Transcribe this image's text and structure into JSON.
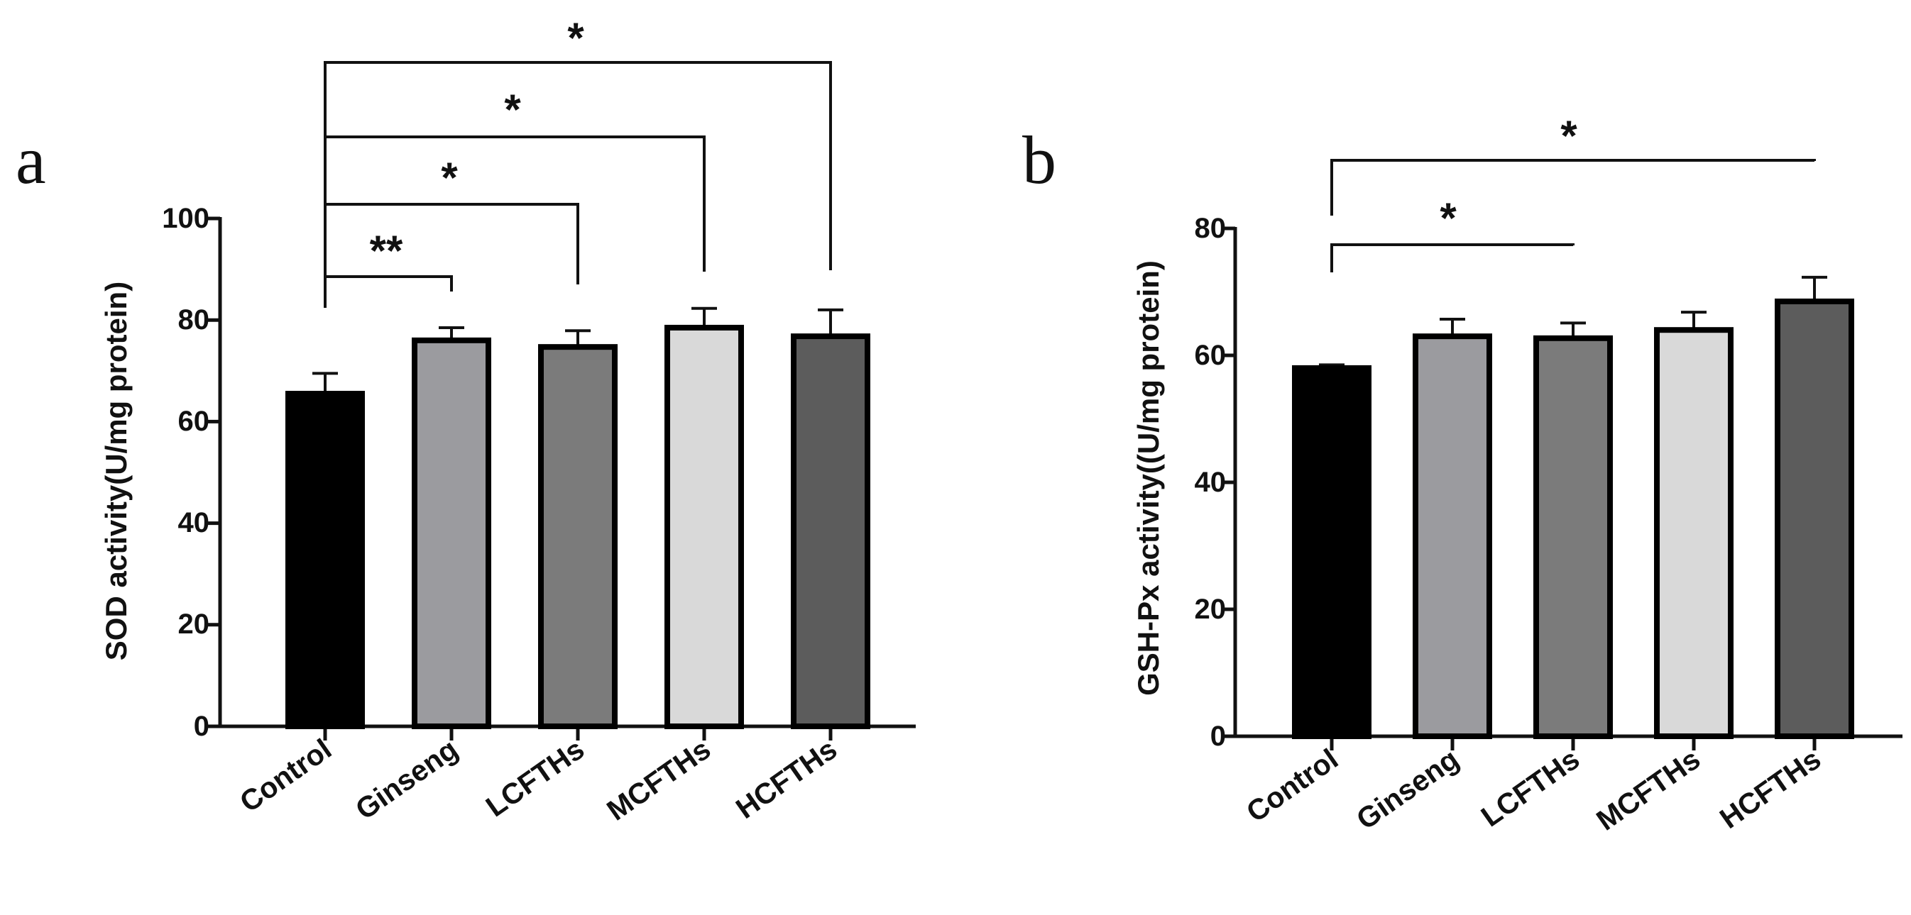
{
  "chart_data": [
    {
      "type": "bar",
      "panel_label": "a",
      "categories": [
        "Control",
        "Ginseng",
        "LCFTHs",
        "MCFTHs",
        "HCFTHs"
      ],
      "values": [
        65.5,
        76,
        74.7,
        78.5,
        76.8
      ],
      "errors": [
        4,
        2.5,
        3.2,
        3.8,
        5.2
      ],
      "bar_colors": [
        "#000000",
        "#9b9b9f",
        "#7b7b7b",
        "#d9d9d9",
        "#5c5c5c"
      ],
      "ylabel": "SOD activity(U/mg protein)",
      "ylim": [
        0,
        100
      ],
      "yticks": [
        "0",
        "20",
        "40",
        "60",
        "80",
        "100"
      ],
      "significance": [
        {
          "label": "**",
          "compare": [
            "Control",
            "Ginseng"
          ]
        },
        {
          "label": "*",
          "compare": [
            "Control",
            "LCFTHs"
          ]
        },
        {
          "label": "*",
          "compare": [
            "Control",
            "MCFTHs"
          ]
        },
        {
          "label": "*",
          "compare": [
            "Control",
            "HCFTHs"
          ]
        }
      ]
    },
    {
      "type": "bar",
      "panel_label": "b",
      "categories": [
        "Control",
        "Ginseng",
        "LCFTHs",
        "MCFTHs",
        "HCFTHs"
      ],
      "values": [
        58,
        63,
        62.7,
        64,
        68.5
      ],
      "errors": [
        0.5,
        2.7,
        2.4,
        2.8,
        3.8
      ],
      "bar_colors": [
        "#000000",
        "#9b9b9f",
        "#7b7b7b",
        "#d9d9d9",
        "#5c5c5c"
      ],
      "ylabel": "GSH-Px activity((U/mg protein)",
      "ylim": [
        0,
        80
      ],
      "yticks": [
        "0",
        "20",
        "40",
        "60",
        "80"
      ],
      "significance": [
        {
          "label": "*",
          "compare": [
            "Control",
            "LCFTHs"
          ]
        },
        {
          "label": "*",
          "compare": [
            "Control",
            "HCFTHs"
          ]
        }
      ]
    }
  ]
}
